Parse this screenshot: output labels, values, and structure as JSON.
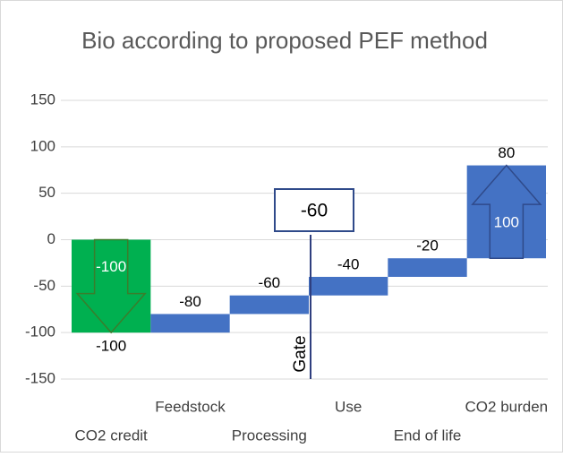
{
  "chart_data": {
    "type": "waterfall",
    "title": "Bio according to proposed PEF method",
    "categories": [
      "CO2 credit",
      "Feedstock",
      "Processing",
      "Use",
      "End of life",
      "CO2 burden"
    ],
    "values": [
      -100,
      20,
      20,
      20,
      20,
      100
    ],
    "value_labels": [
      "-100",
      null,
      null,
      null,
      null,
      "100"
    ],
    "totals": [
      -100,
      -80,
      -60,
      -40,
      -20,
      80
    ],
    "colors": [
      "#00b050",
      "#4472c4",
      "#4472c4",
      "#4472c4",
      "#4472c4",
      "#4472c4"
    ],
    "ylim": [
      -150,
      150
    ],
    "yticks": [
      -150,
      -100,
      -50,
      0,
      50,
      100,
      150
    ],
    "grid": true,
    "gate": {
      "label": "Gate",
      "value": -60
    }
  }
}
